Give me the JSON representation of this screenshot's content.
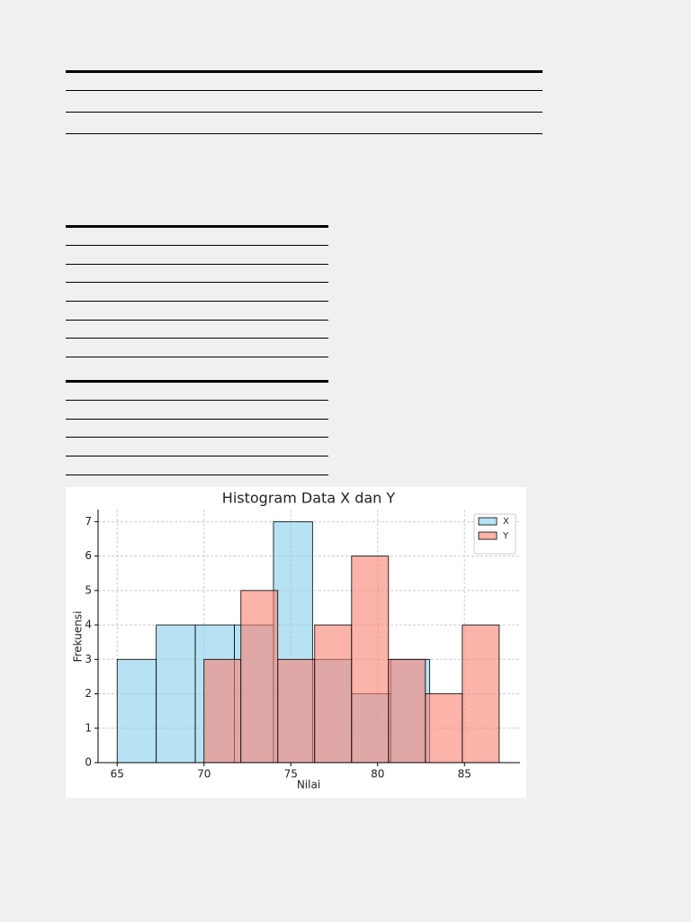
{
  "chart_data": {
    "type": "histogram",
    "title": "Histogram Data X dan Y",
    "xlabel": "Nilai",
    "ylabel": "Frekuensi",
    "series": [
      {
        "name": "X",
        "color": "#87ceeb",
        "bins": [
          65,
          67.25,
          69.5,
          71.75,
          74,
          76.25,
          78.5,
          80.75,
          83
        ],
        "values": [
          3,
          4,
          4,
          4,
          7,
          3,
          2,
          3
        ]
      },
      {
        "name": "Y",
        "color": "#fa8072",
        "bins": [
          70,
          72.125,
          74.25,
          76.375,
          78.5,
          80.625,
          82.75,
          84.875,
          87
        ],
        "values": [
          3,
          5,
          3,
          4,
          6,
          3,
          2,
          4
        ]
      }
    ],
    "xlim": [
      63.9,
      88.2
    ],
    "ylim": [
      0,
      7.35
    ],
    "xticks": [
      65,
      70,
      75,
      80,
      85
    ],
    "yticks": [
      0,
      1,
      2,
      3,
      4,
      5,
      6,
      7
    ],
    "grid": true,
    "legend": "upper right"
  }
}
